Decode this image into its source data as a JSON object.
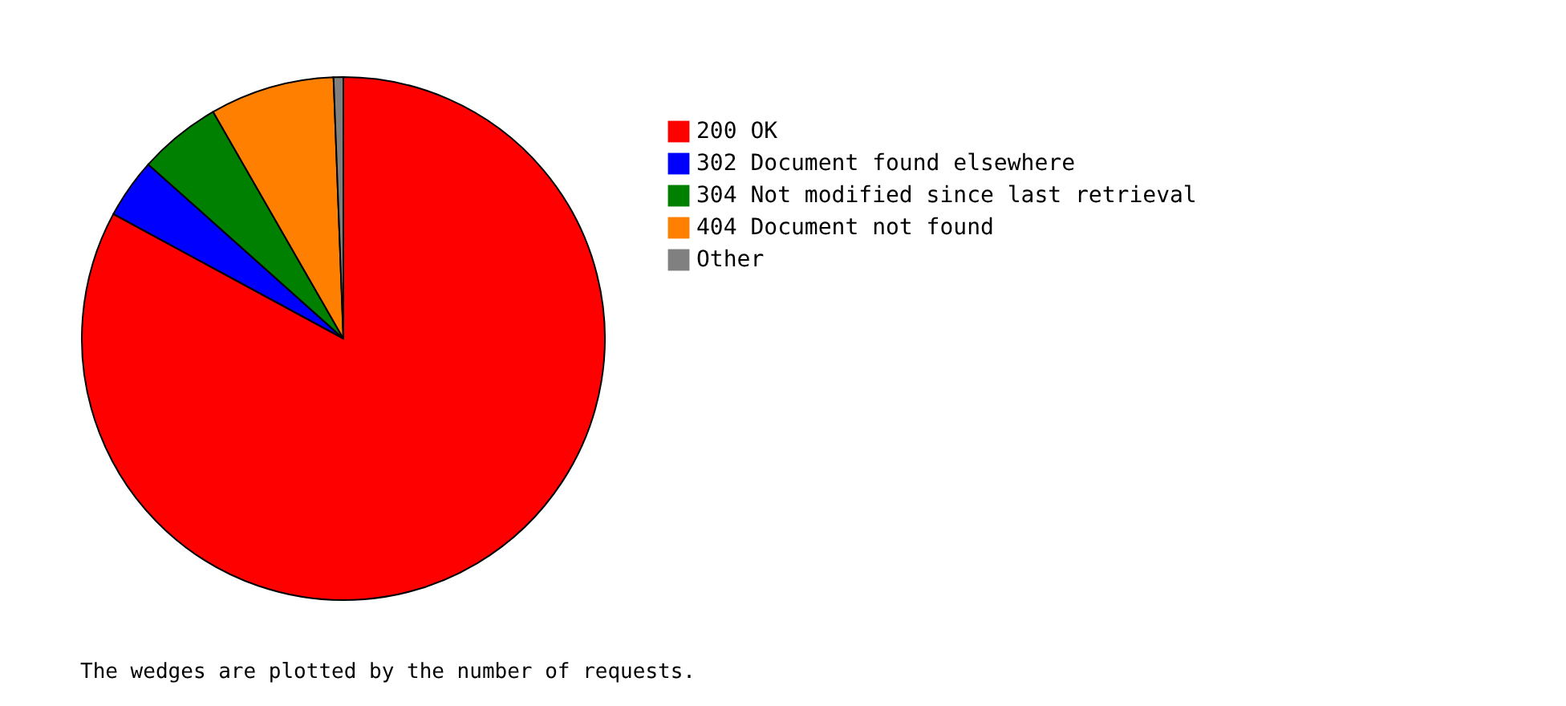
{
  "chart_data": {
    "type": "pie",
    "categories": [
      "200 OK",
      "302 Document found elsewhere",
      "304 Not modified since last retrieval",
      "404 Document not found",
      "Other"
    ],
    "values": [
      82.9,
      3.7,
      5.1,
      7.7,
      0.6
    ],
    "colors": [
      "#ff0000",
      "#0000ff",
      "#008000",
      "#ff8000",
      "#808080"
    ],
    "legend": "top right",
    "annotations": [
      "The wedges are plotted by the number of requests."
    ]
  }
}
